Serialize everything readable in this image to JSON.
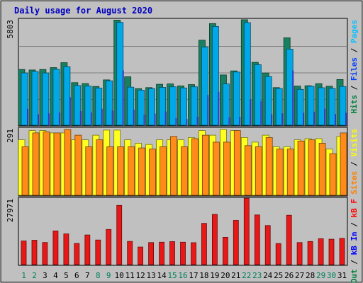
{
  "chart_data": {
    "type": "bar",
    "title": "Daily usage for August 2020",
    "days": [
      "1",
      "2",
      "3",
      "4",
      "5",
      "6",
      "7",
      "8",
      "9",
      "10",
      "11",
      "12",
      "13",
      "14",
      "15",
      "16",
      "17",
      "18",
      "19",
      "20",
      "21",
      "22",
      "23",
      "24",
      "25",
      "26",
      "27",
      "28",
      "29",
      "30",
      "31"
    ],
    "weekend_days": [
      "1",
      "2",
      "8",
      "9",
      "15",
      "16",
      "22",
      "23",
      "29",
      "30"
    ],
    "panels": [
      {
        "name": "pages-files-hits",
        "max_label": "5803",
        "ymax": 5803,
        "legend": [
          {
            "label": "Pages",
            "color": "#00c0ff"
          },
          {
            "label": "Files",
            "color": "#0040ff"
          },
          {
            "label": "Hits",
            "color": "#008040"
          }
        ],
        "series": [
          {
            "name": "Hits",
            "color": "#188060",
            "values": [
              3050,
              3020,
              3050,
              3150,
              3420,
              2330,
              2280,
              2120,
              2480,
              5750,
              2650,
              2000,
              2060,
              2240,
              2260,
              2150,
              2220,
              4650,
              5560,
              2750,
              2970,
              5770,
              3440,
              2860,
              2060,
              4780,
              2140,
              2160,
              2270,
              2130,
              2500
            ]
          },
          {
            "name": "Files",
            "color": "#00a8e8",
            "values": [
              2860,
              2940,
              2860,
              3060,
              3200,
              2170,
              2140,
              2030,
              2430,
              5620,
              2080,
              1920,
              2000,
              2070,
              2100,
              2040,
              2100,
              4270,
              5400,
              2260,
              2910,
              5610,
              3310,
              2660,
              2010,
              4160,
              1960,
              2130,
              2050,
              2010,
              2120
            ]
          },
          {
            "name": "Pages",
            "color": "#3438c0",
            "values": [
              900,
              600,
              650,
              690,
              1540,
              770,
              700,
              900,
              800,
              3000,
              850,
              580,
              640,
              750,
              400,
              340,
              470,
              1650,
              1830,
              420,
              460,
              1410,
              1310,
              600,
              650,
              3000,
              680,
              740,
              900,
              610,
              680
            ]
          }
        ]
      },
      {
        "name": "visits-sites",
        "max_label": "291",
        "ymax": 291,
        "legend": [
          {
            "label": "Visits",
            "color": "#ffff00"
          },
          {
            "label": "Sites",
            "color": "#ff8000"
          }
        ],
        "series": [
          {
            "name": "Visits",
            "color": "#ffff20",
            "values": [
              240,
              280,
              280,
              270,
              270,
              240,
              240,
              260,
              282,
              282,
              240,
              225,
              220,
              240,
              240,
              240,
              250,
              280,
              260,
              285,
              280,
              250,
              230,
              260,
              210,
              210,
              240,
              245,
              245,
              200,
              255
            ]
          },
          {
            "name": "Sites",
            "color": "#ff8c1a",
            "values": [
              210,
              270,
              275,
              270,
              285,
              260,
              210,
              240,
              210,
              210,
              210,
              205,
              200,
              210,
              255,
              210,
              245,
              260,
              230,
              230,
              280,
              215,
              210,
              250,
              200,
              200,
              235,
              240,
              225,
              180,
              270
            ]
          }
        ]
      },
      {
        "name": "kbytes",
        "max_label": "27971",
        "ymax": 27971,
        "legend": [
          {
            "label": "kB F",
            "color": "#ff0000"
          },
          {
            "label": "kB In",
            "color": "#0000ff"
          },
          {
            "label": "kB Out",
            "color": "#008040"
          }
        ],
        "series": [
          {
            "name": "kB F",
            "color": "#e81818",
            "values": [
              9950,
              10260,
              9300,
              14160,
              12900,
              8890,
              12480,
              10370,
              14780,
              24900,
              9750,
              7420,
              9290,
              9430,
              9670,
              9430,
              9220,
              17350,
              21120,
              11490,
              18590,
              27900,
              20900,
              16440,
              8860,
              20780,
              9270,
              9730,
              10880,
              10690,
              11030
            ]
          }
        ]
      }
    ]
  }
}
